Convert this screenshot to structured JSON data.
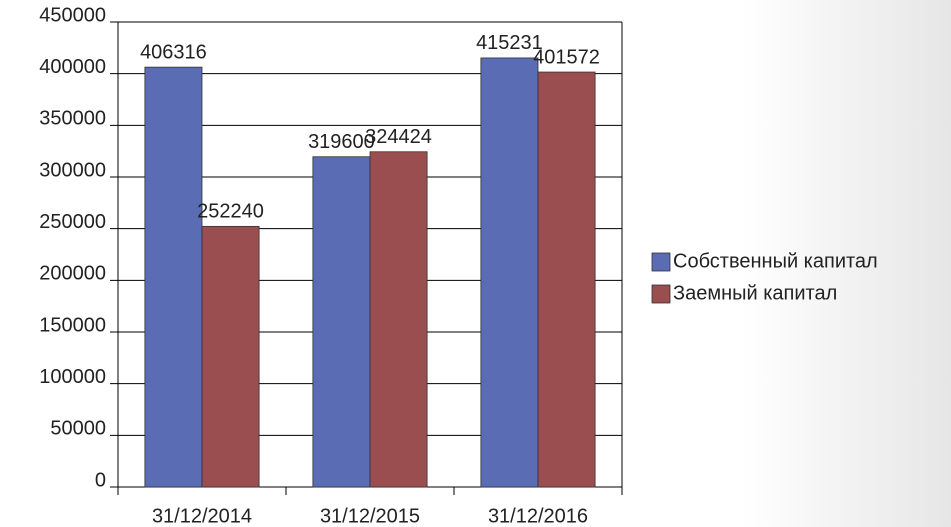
{
  "chart_data": {
    "type": "bar",
    "categories": [
      "31/12/2014",
      "31/12/2015",
      "31/12/2016"
    ],
    "series": [
      {
        "name": "Собственный капитал",
        "color": "#5a6cb4",
        "values": [
          406316,
          319600,
          415231
        ]
      },
      {
        "name": "Заемный капитал",
        "color": "#9a4e4f",
        "values": [
          252240,
          324424,
          401572
        ]
      }
    ],
    "ylim": [
      0,
      450000
    ],
    "yticks": [
      0,
      50000,
      100000,
      150000,
      200000,
      250000,
      300000,
      350000,
      400000,
      450000
    ],
    "grid": true,
    "legend": "right"
  }
}
